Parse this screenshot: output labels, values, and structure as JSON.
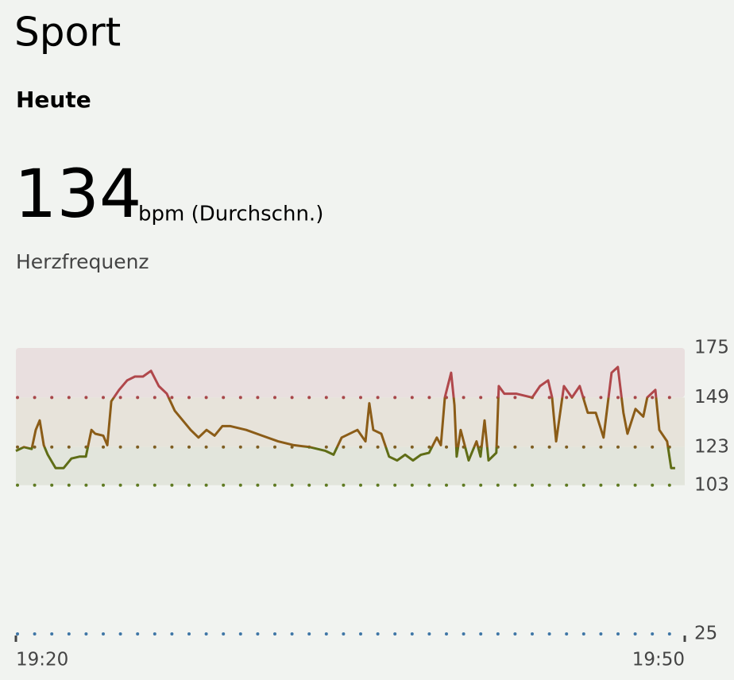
{
  "header": {
    "title": "Sport",
    "subtitle": "Heute"
  },
  "summary": {
    "value": "134",
    "unit": "bpm (Durchschn.)",
    "label": "Herzfrequenz"
  },
  "chart_data": {
    "type": "line",
    "x": [
      1160,
      1160.36,
      1160.71,
      1160.89,
      1161.07,
      1161.25,
      1161.43,
      1161.78,
      1162.14,
      1162.49,
      1162.85,
      1163.14,
      1163.39,
      1163.56,
      1163.92,
      1164.1,
      1164.28,
      1164.63,
      1164.99,
      1165.34,
      1165.7,
      1166.06,
      1166.41,
      1166.77,
      1167.13,
      1167.84,
      1168.19,
      1168.55,
      1168.91,
      1169.26,
      1169.62,
      1170.33,
      1171.04,
      1171.76,
      1172.47,
      1173.18,
      1173.89,
      1174.25,
      1174.61,
      1175.32,
      1175.68,
      1175.85,
      1176.03,
      1176.39,
      1176.74,
      1177.1,
      1177.46,
      1177.81,
      1178.17,
      1178.53,
      1178.88,
      1179.06,
      1179.24,
      1179.52,
      1179.67,
      1179.77,
      1179.95,
      1180.31,
      1180.66,
      1180.84,
      1181.02,
      1181.2,
      1181.55,
      1181.66,
      1181.91,
      1182.44,
      1183.16,
      1183.51,
      1183.87,
      1184.05,
      1184.23,
      1184.58,
      1184.94,
      1185.29,
      1185.65,
      1186.01,
      1186.36,
      1186.72,
      1187.0,
      1187.25,
      1187.43,
      1187.79,
      1188.14,
      1188.32,
      1188.68,
      1188.86,
      1189.21,
      1189.39,
      1189.57
    ],
    "values": [
      121,
      123,
      122,
      132,
      137,
      124,
      119,
      112,
      112,
      117,
      118,
      118,
      132,
      130,
      129,
      124,
      147,
      153,
      158,
      160,
      160,
      163,
      155,
      151,
      142,
      132,
      128,
      132,
      129,
      134,
      134,
      132,
      129,
      126,
      124,
      123,
      121,
      119,
      128,
      132,
      126,
      146,
      132,
      130,
      118,
      116,
      119,
      116,
      119,
      120,
      128,
      124,
      149,
      162,
      145,
      118,
      132,
      116,
      126,
      118,
      137,
      116,
      120,
      155,
      151,
      151,
      149,
      155,
      158,
      149,
      126,
      155,
      149,
      155,
      141,
      141,
      128,
      162,
      165,
      141,
      130,
      143,
      139,
      149,
      153,
      132,
      126,
      112,
      112
    ],
    "xlim": [
      1160,
      1190
    ],
    "xticks": [
      {
        "value": 1160,
        "label": "19:20"
      },
      {
        "value": 1190,
        "label": "19:50"
      }
    ],
    "ylim": [
      25,
      175
    ],
    "yticks": [
      175,
      149,
      123,
      103,
      25
    ],
    "zones": [
      {
        "from": 149,
        "to": 175,
        "fill": "#e9dfdf",
        "line_color": "#b0474b",
        "dot_color": "#a8474a"
      },
      {
        "from": 123,
        "to": 149,
        "fill": "#e7e3da",
        "line_color": "#8b5c17",
        "dot_color": "#7f5e22"
      },
      {
        "from": 103,
        "to": 123,
        "fill": "#e2e5dc",
        "line_color": "#5f6d16",
        "dot_color": "#5f7a22"
      }
    ],
    "baseline_color": "#3f76a6"
  }
}
